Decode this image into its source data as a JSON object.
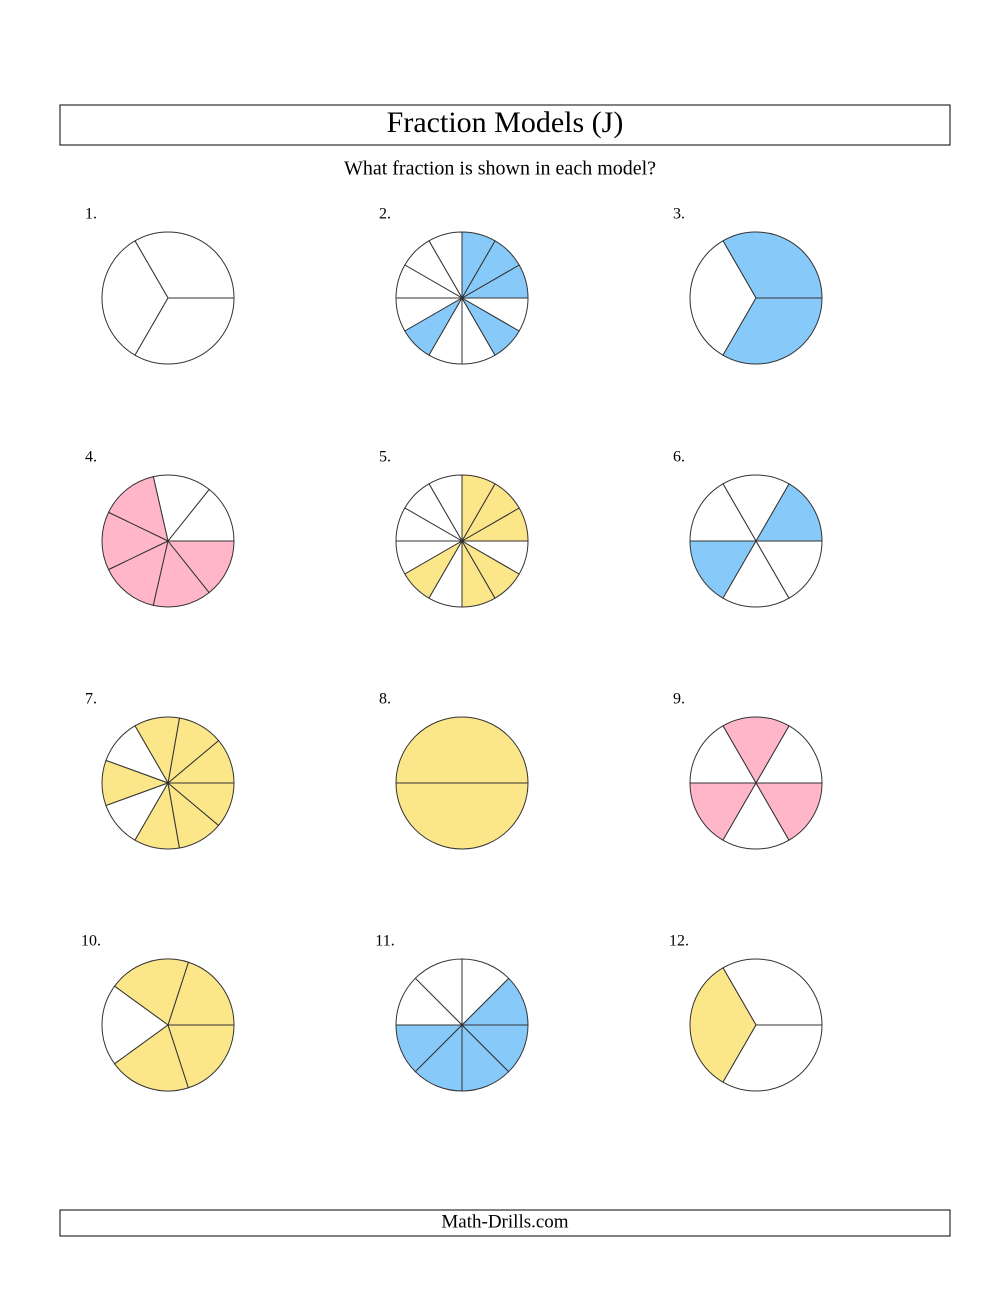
{
  "header": {
    "title": "Fraction Models (J)",
    "instruction": "What fraction is shown in each model?"
  },
  "problems": [
    {
      "label": "1.",
      "slices": 3,
      "shaded": [],
      "color": "#87cafa"
    },
    {
      "label": "2.",
      "slices": 12,
      "shaded": [
        0,
        1,
        2,
        7,
        10
      ],
      "color": "#87cafa"
    },
    {
      "label": "3.",
      "slices": 3,
      "shaded": [
        0,
        2
      ],
      "color": "#87cafa"
    },
    {
      "label": "4.",
      "slices": 7,
      "shaded": [
        2,
        3,
        4,
        5,
        6
      ],
      "color": "#ffb6c8"
    },
    {
      "label": "5.",
      "slices": 12,
      "shaded": [
        0,
        1,
        2,
        7,
        9,
        10
      ],
      "color": "#fce68a"
    },
    {
      "label": "6.",
      "slices": 6,
      "shaded": [
        0,
        3
      ],
      "color": "#87cafa"
    },
    {
      "label": "7.",
      "slices": 9,
      "shaded": [
        0,
        1,
        2,
        4,
        6,
        7,
        8
      ],
      "color": "#fce68a"
    },
    {
      "label": "8.",
      "slices": 2,
      "shaded": [
        0,
        1
      ],
      "color": "#fce68a"
    },
    {
      "label": "9.",
      "slices": 6,
      "shaded": [
        1,
        3,
        5
      ],
      "color": "#ffb6c8"
    },
    {
      "label": "10.",
      "slices": 5,
      "shaded": [
        0,
        1,
        3,
        4
      ],
      "color": "#fce68a"
    },
    {
      "label": "11.",
      "slices": 8,
      "shaded": [
        0,
        4,
        5,
        6,
        7
      ],
      "color": "#87cafa"
    },
    {
      "label": "12.",
      "slices": 3,
      "shaded": [
        1
      ],
      "color": "#fce68a"
    }
  ],
  "footer": {
    "text": "Math-Drills.com"
  }
}
